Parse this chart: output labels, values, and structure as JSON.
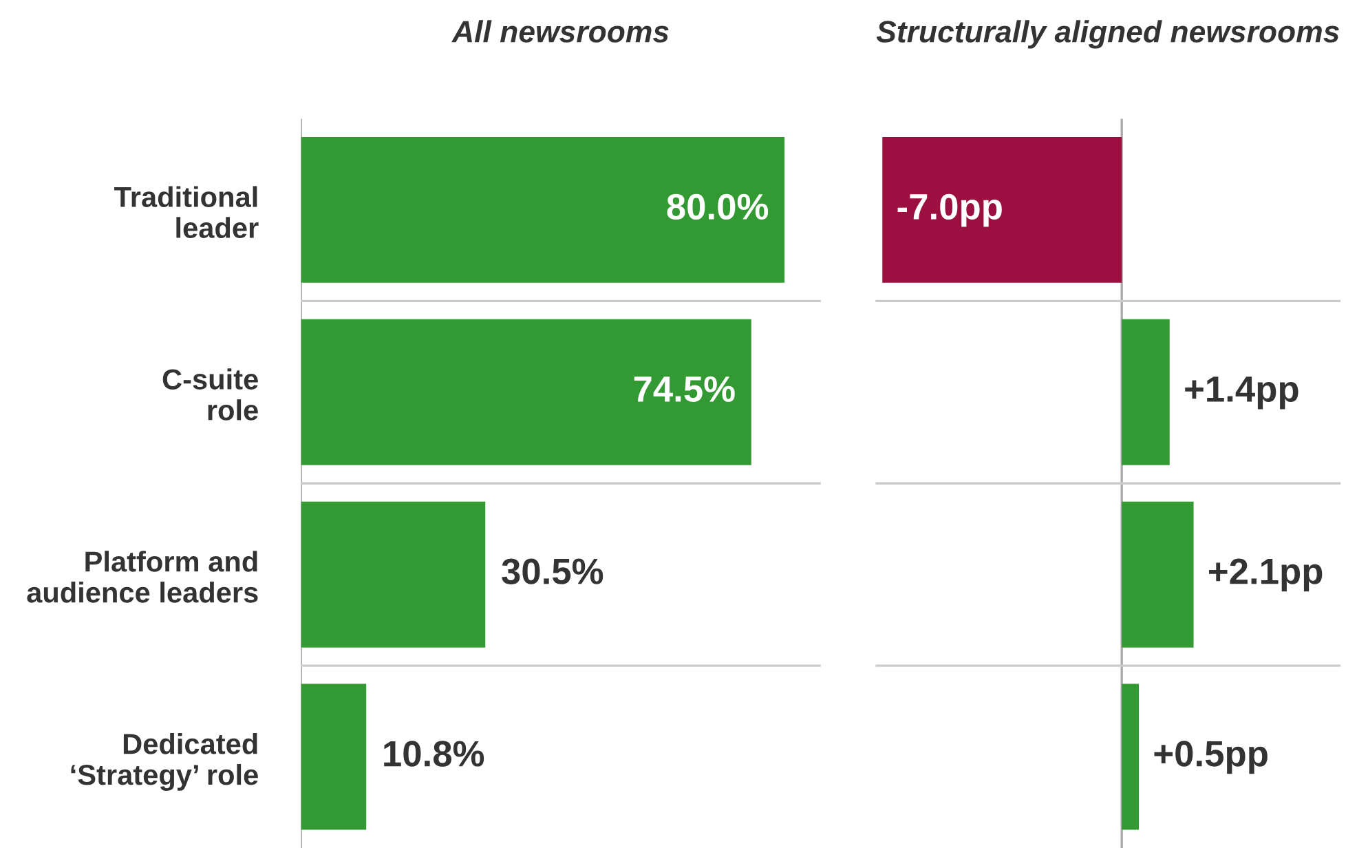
{
  "chart_data": [
    {
      "type": "bar",
      "orientation": "horizontal",
      "title": "All newsrooms",
      "categories": [
        "Traditional\nleader",
        "C-suite\nrole",
        "Platform and\naudience leaders",
        "Dedicated\n‘Strategy’ role"
      ],
      "values": [
        80.0,
        74.5,
        30.5,
        10.8
      ],
      "value_labels": [
        "80.0%",
        "74.5%",
        "30.5%",
        "10.8%"
      ],
      "color": "#339933",
      "xlim": [
        0,
        86
      ],
      "tick_labels": "y"
    },
    {
      "type": "bar",
      "orientation": "horizontal",
      "title": "Structurally aligned newsrooms",
      "categories": [
        null,
        null,
        null,
        null
      ],
      "values": [
        -7.0,
        1.4,
        2.1,
        0.5
      ],
      "value_labels": [
        "-7.0pp",
        "+1.4pp",
        "+2.1pp",
        "+0.5pp"
      ],
      "colors": [
        "#9b1040",
        "#339933",
        "#339933",
        "#339933"
      ],
      "xlim": [
        -7.2,
        6.4
      ],
      "tick_labels": false
    }
  ]
}
